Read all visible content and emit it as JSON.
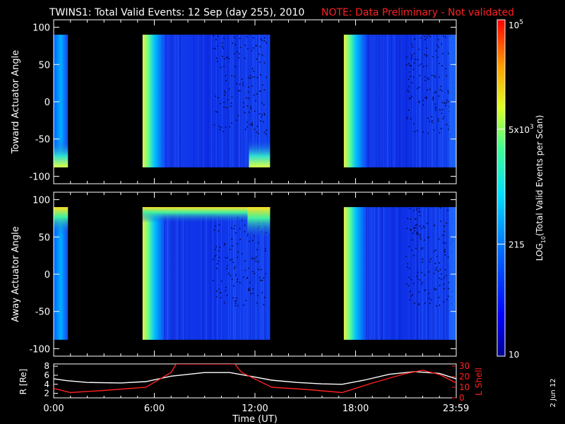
{
  "header": {
    "title": "TWINS1: Total Valid Events: 12 Sep (day 255), 2010",
    "note": "NOTE: Data Preliminary - Not validated"
  },
  "footer": {
    "date_stamp": "2 Jun 12"
  },
  "colors": {
    "background": "#000000",
    "axes": "#ffffff",
    "note": "#ff2020",
    "l_shell": "#ff2020",
    "r_line": "#ffffff"
  },
  "chart_data": [
    {
      "type": "heatmap",
      "ylabel": "Toward Actuator Angle",
      "ylim": [
        -110,
        110
      ],
      "yticks": [
        "100",
        "50",
        "0",
        "-50",
        "-100"
      ],
      "xlim": [
        0,
        24
      ],
      "data_blocks_ut": [
        [
          0,
          0.85
        ],
        [
          5.3,
          12.9
        ],
        [
          17.3,
          24
        ]
      ]
    },
    {
      "type": "heatmap",
      "ylabel": "Away Actuator Angle",
      "ylim": [
        -110,
        110
      ],
      "yticks": [
        "100",
        "50",
        "0",
        "-50",
        "-100"
      ],
      "xlim": [
        0,
        24
      ],
      "data_blocks_ut": [
        [
          0,
          0.85
        ],
        [
          5.3,
          12.9
        ],
        [
          17.3,
          24
        ]
      ]
    },
    {
      "type": "line",
      "xlabel": "Time (UT)",
      "xticks": [
        "0:00",
        "6:00",
        "12:00",
        "18:00",
        "23:59"
      ],
      "xlim": [
        0,
        24
      ],
      "ylabel_left": "R [Re]",
      "yticks_left": [
        "8",
        "6",
        "4",
        "2"
      ],
      "ylim_left": [
        1,
        8.5
      ],
      "ylabel_right": "L Shell",
      "yticks_right": [
        "30",
        "20",
        "10",
        "0"
      ],
      "ylim_right": [
        0,
        32
      ],
      "series": [
        {
          "name": "R",
          "axis": "left",
          "x": [
            0,
            0.8,
            2,
            4,
            5.5,
            7,
            9,
            10.5,
            12,
            13,
            14.5,
            16,
            17.2,
            18.5,
            20,
            21.5,
            23,
            24
          ],
          "y": [
            5.2,
            4.8,
            4.4,
            4.3,
            4.6,
            5.8,
            6.6,
            6.6,
            5.6,
            4.9,
            4.4,
            4.1,
            4.0,
            4.9,
            6.2,
            6.8,
            6.4,
            5.2
          ]
        },
        {
          "name": "L Shell",
          "axis": "right",
          "x": [
            0,
            1,
            3,
            5.5,
            7,
            7.3,
            10.8,
            11.2,
            13,
            15,
            17.2,
            19,
            21,
            22,
            23,
            24
          ],
          "y": [
            9,
            5,
            7,
            10,
            24,
            32,
            32,
            24,
            10,
            8,
            5,
            14,
            23,
            26,
            22,
            14
          ]
        }
      ]
    }
  ],
  "colorbar": {
    "type": "colorbar",
    "label": "LOG10(Total Valid Events per Scan)",
    "label_main": "LOG",
    "label_sub": "10",
    "label_rest": "(Total Valid Events per Scan)",
    "range": [
      10,
      100000
    ],
    "ticks": [
      {
        "value": 100000,
        "base": "10",
        "sup": "5"
      },
      {
        "value": 5000,
        "base": "5x10",
        "sup": "3"
      },
      {
        "value": 215,
        "base": "215",
        "sup": ""
      },
      {
        "value": 10,
        "base": "10",
        "sup": ""
      }
    ]
  }
}
